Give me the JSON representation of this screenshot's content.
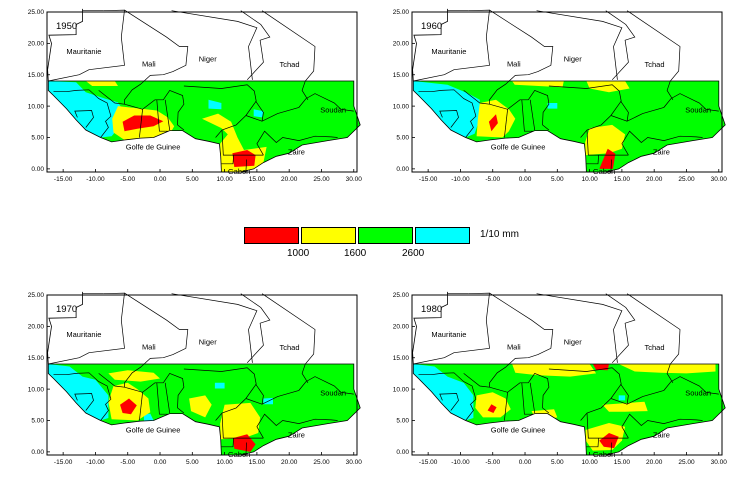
{
  "colors": {
    "red": "#ff0000",
    "yellow": "#ffff00",
    "green": "#00ff00",
    "cyan": "#00ffff",
    "outline": "#000000"
  },
  "axes": {
    "x_ticks": [
      "-15.00",
      "-10.00",
      "-5.00",
      "0.00",
      "5.00",
      "10.00",
      "15.00",
      "20.00",
      "25.00",
      "30.00"
    ],
    "y_ticks": [
      "25.00",
      "20.00",
      "15.00",
      "10.00",
      "5.00",
      "0.00"
    ]
  },
  "places": {
    "mauritanie": "Mauritanie",
    "mali": "Mali",
    "niger": "Niger",
    "tchad": "Tchad",
    "soudan": "Soudan",
    "golfe": "Golfe de Guinee",
    "gabon": "Gabon",
    "zaire": "Zaire"
  },
  "panels": [
    {
      "year": "1950"
    },
    {
      "year": "1960"
    },
    {
      "year": "1970"
    },
    {
      "year": "1980"
    }
  ],
  "legend": {
    "unit": "1/10 mm",
    "thresholds": [
      "1000",
      "1600",
      "2600"
    ],
    "colors": [
      "#ff0000",
      "#ffff00",
      "#00ff00",
      "#00ffff"
    ]
  }
}
